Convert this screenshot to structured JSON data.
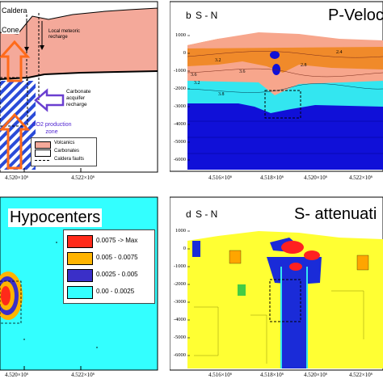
{
  "panel_a": {
    "labels": {
      "caldera": "Caldera",
      "cone": "Cone",
      "local_recharge": "Local meteoric recharge",
      "carbonate_recharge": "Carbonate acquifer recharge",
      "co2_zone": "CO2 production zone"
    },
    "legend": [
      {
        "label": "Volcanics",
        "color": "#f4a99a"
      },
      {
        "label": "Carbonates",
        "color": "#ffffff"
      },
      {
        "label": "Caldera faults",
        "color": "none"
      }
    ],
    "x_ticks": [
      "4.520×10⁶",
      "4.522×10⁶"
    ]
  },
  "panel_b": {
    "letter": "b",
    "direction": "S - N",
    "title": "P-Velocit",
    "y_ticks": [
      "1000",
      "0",
      "-1000",
      "-2000",
      "-3000",
      "-4000",
      "-5000",
      "-6000"
    ],
    "x_ticks": [
      "4.516×10⁶",
      "4.518×10⁶",
      "4.520×10⁶",
      "4.522×10⁶"
    ],
    "contour_labels": [
      "3.2",
      "3.6",
      "2.8",
      "2.4",
      "3.8",
      "3.2",
      "3.6"
    ]
  },
  "panel_c": {
    "title": "Hypocenters",
    "legend": [
      {
        "label": "0.0075 -> Max",
        "color": "#ff2a1a"
      },
      {
        "label": "0.005 - 0.0075",
        "color": "#ffb400"
      },
      {
        "label": "0.0025 - 0.005",
        "color": "#3a2fc8"
      },
      {
        "label": "0.00 -  0.0025",
        "color": "#33ffff"
      }
    ],
    "x_ticks": [
      "4.520×10⁶",
      "4.522×10⁶"
    ]
  },
  "panel_d": {
    "letter": "d",
    "direction": "S - N",
    "title": "S- attenuati",
    "y_ticks": [
      "1000",
      "0",
      "-1000",
      "-2000",
      "-3000",
      "-4000",
      "-5000",
      "-6000"
    ],
    "x_ticks": [
      "4.516×10⁶",
      "4.518×10⁶",
      "4.520×10⁶",
      "4.522×10⁶"
    ]
  },
  "colors": {
    "volcanics": "#f4a99a",
    "velocity_low": "#f08a2a",
    "velocity_mid": "#f7a68c",
    "velocity_cyan": "#33e6f0",
    "velocity_blue": "#1010d8",
    "atten_yellow": "#ffff33",
    "atten_blue": "#1a2bd8",
    "atten_red": "#ff2020",
    "atten_orange": "#ffa500",
    "hypo_cyan": "#33ffff"
  }
}
